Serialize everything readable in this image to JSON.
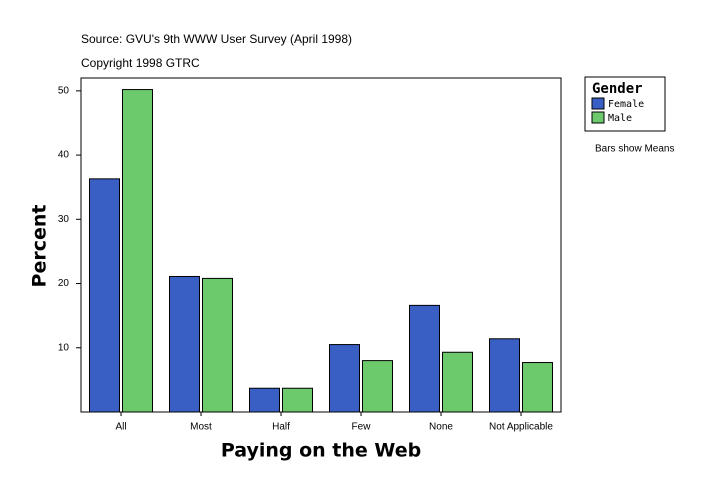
{
  "chart_data": {
    "type": "bar",
    "subtitle_lines": [
      "Source: GVU's 9th WWW User Survey (April 1998)",
      "Copyright 1998 GTRC"
    ],
    "x_label": "Paying on the Web",
    "y_label": "Percent",
    "annotation": "Bars show Means",
    "legend_title": "Gender",
    "categories": [
      "All",
      "Most",
      "Half",
      "Few",
      "None",
      "Not Applicable"
    ],
    "series": [
      {
        "name": "Female",
        "color": "#3a5fc4",
        "values": [
          36.3,
          21.1,
          3.7,
          10.5,
          16.6,
          11.4
        ]
      },
      {
        "name": "Male",
        "color": "#6cc96c",
        "values": [
          50.2,
          20.8,
          3.7,
          8.0,
          9.3,
          7.7
        ]
      }
    ],
    "ylim": [
      0,
      52
    ],
    "yticks": [
      10,
      20,
      30,
      40,
      50
    ],
    "grid": false
  }
}
